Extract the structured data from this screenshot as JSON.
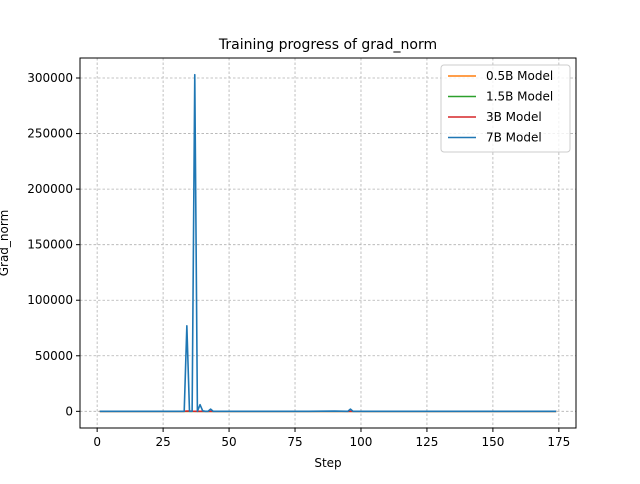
{
  "chart_data": {
    "type": "line",
    "title": "Training progress of grad_norm",
    "xlabel": "Step",
    "ylabel": "Grad_norm",
    "xlim": [
      -6.5,
      181.5
    ],
    "ylim": [
      -15000,
      318000
    ],
    "xticks": [
      0,
      25,
      50,
      75,
      100,
      125,
      150,
      175
    ],
    "yticks": [
      0,
      50000,
      100000,
      150000,
      200000,
      250000,
      300000
    ],
    "xtick_labels": [
      "0",
      "25",
      "50",
      "75",
      "100",
      "125",
      "150",
      "175"
    ],
    "ytick_labels": [
      "0",
      "50000",
      "100000",
      "150000",
      "200000",
      "250000",
      "300000"
    ],
    "grid": true,
    "legend_position": "upper right",
    "series": [
      {
        "name": "0.5B Model",
        "color": "#ff7f0e",
        "x": [
          1,
          10,
          20,
          30,
          34,
          35,
          36,
          37,
          38,
          40,
          43,
          50,
          60,
          80,
          100,
          120,
          140,
          160,
          174
        ],
        "y": [
          5,
          5,
          5,
          5,
          5,
          5,
          5,
          5,
          5,
          5,
          5,
          5,
          5,
          5,
          5,
          5,
          5,
          5,
          5
        ]
      },
      {
        "name": "1.5B Model",
        "color": "#2ca02c",
        "x": [
          1,
          20,
          40,
          60,
          80,
          100,
          120,
          140,
          160,
          174
        ],
        "y": [
          5,
          5,
          5,
          5,
          5,
          5,
          5,
          5,
          5,
          5
        ]
      },
      {
        "name": "3B Model",
        "color": "#d62728",
        "x": [
          1,
          20,
          33,
          34,
          35,
          36,
          38,
          40,
          60,
          80,
          100,
          120,
          140,
          160,
          174
        ],
        "y": [
          5,
          5,
          5,
          300,
          200,
          100,
          50,
          20,
          5,
          5,
          5,
          5,
          5,
          5,
          5
        ]
      },
      {
        "name": "7B Model",
        "color": "#1f77b4",
        "x": [
          1,
          10,
          20,
          30,
          33,
          34,
          35,
          36,
          37,
          38,
          39,
          40,
          41,
          42,
          43,
          44,
          50,
          60,
          70,
          80,
          90,
          95,
          96,
          97,
          100,
          110,
          120,
          130,
          140,
          150,
          160,
          170,
          174
        ],
        "y": [
          10,
          10,
          10,
          10,
          0,
          77000,
          0,
          0,
          303000,
          0,
          6000,
          500,
          0,
          0,
          2000,
          0,
          0,
          0,
          0,
          0,
          200,
          0,
          2000,
          0,
          0,
          0,
          0,
          0,
          0,
          0,
          0,
          0,
          0
        ]
      }
    ]
  }
}
